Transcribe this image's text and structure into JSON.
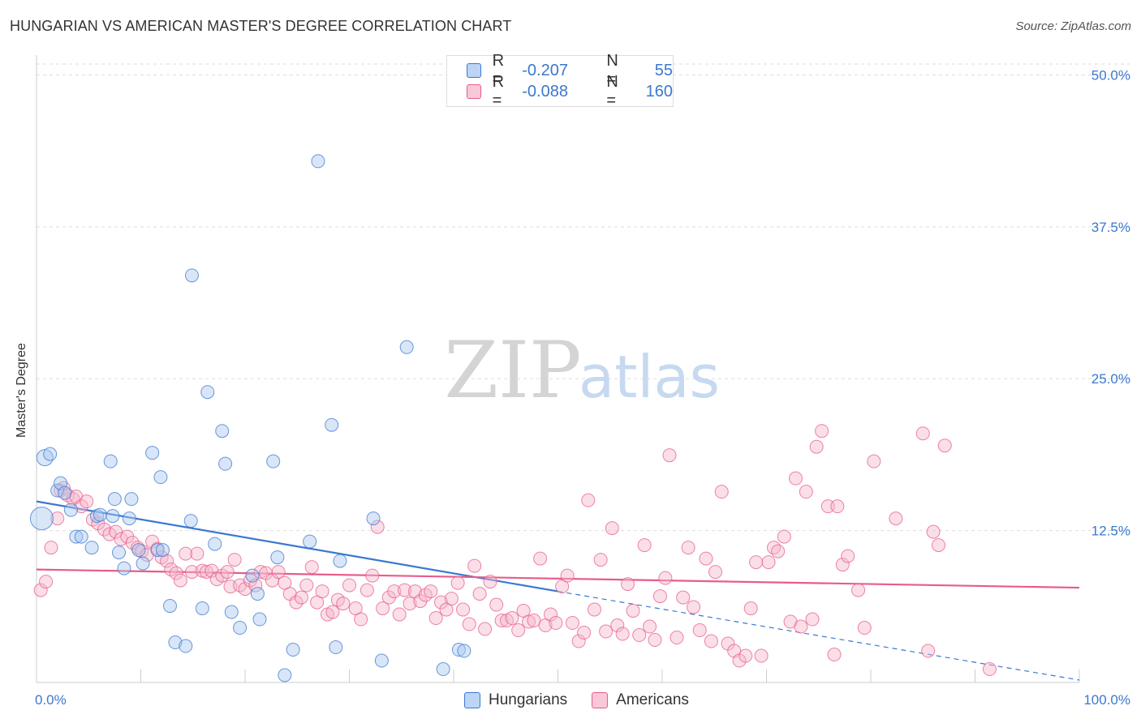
{
  "title": "HUNGARIAN VS AMERICAN MASTER'S DEGREE CORRELATION CHART",
  "source": "Source: ZipAtlas.com",
  "colors": {
    "blue": "#3b78d0",
    "blue_fill": "#a9c8f0",
    "pink": "#e85c8a",
    "pink_fill": "#f5b8cc",
    "axis_text": "#3b78d0",
    "grid": "#dddddd"
  },
  "legend": {
    "hungarians": {
      "r_label": "R =",
      "r_value": "-0.207",
      "n_label": "N =",
      "n_value": "55"
    },
    "americans": {
      "r_label": "R =",
      "r_value": "-0.088",
      "n_label": "N =",
      "n_value": "160"
    }
  },
  "watermark": {
    "zip": "ZIP",
    "atlas": "atlas"
  },
  "chart_data": {
    "type": "scatter",
    "title": "HUNGARIAN VS AMERICAN MASTER'S DEGREE CORRELATION CHART",
    "xlabel": "",
    "ylabel": "Master's Degree",
    "xlim": [
      0,
      100
    ],
    "ylim": [
      0,
      51.5
    ],
    "x_tick_labels": [
      "0.0%",
      "100.0%"
    ],
    "y_ticks": [
      12.5,
      25.0,
      37.5,
      50.0
    ],
    "y_tick_labels": [
      "12.5%",
      "25.0%",
      "37.5%",
      "50.0%"
    ],
    "grid": true,
    "legend_position": "bottom",
    "series": [
      {
        "name": "Hungarians",
        "color": "#3b78d0",
        "trend": {
          "x0": 0,
          "y0": 14.9,
          "x1": 50,
          "y1": 7.5,
          "extended_to_x": 100,
          "extended_y": 0.2
        },
        "points": [
          [
            0.5,
            13.5
          ],
          [
            0.8,
            18.5
          ],
          [
            1.3,
            18.8
          ],
          [
            2.0,
            15.8
          ],
          [
            2.3,
            16.4
          ],
          [
            2.7,
            15.6
          ],
          [
            3.3,
            14.2
          ],
          [
            3.8,
            12.0
          ],
          [
            4.3,
            12.0
          ],
          [
            5.3,
            11.1
          ],
          [
            5.8,
            13.7
          ],
          [
            6.1,
            13.8
          ],
          [
            7.1,
            18.2
          ],
          [
            7.3,
            13.7
          ],
          [
            7.5,
            15.1
          ],
          [
            7.9,
            10.7
          ],
          [
            8.4,
            9.4
          ],
          [
            8.9,
            13.5
          ],
          [
            9.1,
            15.1
          ],
          [
            9.8,
            10.9
          ],
          [
            10.2,
            9.8
          ],
          [
            11.1,
            18.9
          ],
          [
            11.6,
            10.9
          ],
          [
            11.9,
            16.9
          ],
          [
            12.1,
            10.9
          ],
          [
            12.8,
            6.3
          ],
          [
            13.3,
            3.3
          ],
          [
            14.3,
            3.0
          ],
          [
            14.8,
            13.3
          ],
          [
            14.9,
            33.5
          ],
          [
            15.9,
            6.1
          ],
          [
            16.4,
            23.9
          ],
          [
            17.1,
            11.4
          ],
          [
            17.8,
            20.7
          ],
          [
            18.1,
            18.0
          ],
          [
            18.7,
            5.8
          ],
          [
            19.5,
            4.5
          ],
          [
            20.7,
            8.8
          ],
          [
            21.2,
            7.3
          ],
          [
            21.4,
            5.2
          ],
          [
            22.7,
            18.2
          ],
          [
            23.1,
            10.3
          ],
          [
            23.8,
            0.6
          ],
          [
            24.6,
            2.7
          ],
          [
            26.2,
            11.6
          ],
          [
            27.0,
            42.9
          ],
          [
            28.3,
            21.2
          ],
          [
            28.7,
            2.9
          ],
          [
            29.1,
            10.0
          ],
          [
            32.3,
            13.5
          ],
          [
            33.1,
            1.8
          ],
          [
            35.5,
            27.6
          ],
          [
            39.0,
            1.1
          ],
          [
            40.5,
            2.7
          ],
          [
            41.0,
            2.6
          ]
        ]
      },
      {
        "name": "Americans",
        "color": "#e85c8a",
        "trend": {
          "x0": 0,
          "y0": 9.3,
          "x1": 100,
          "y1": 7.8
        },
        "points": [
          [
            0.4,
            7.6
          ],
          [
            0.9,
            8.3
          ],
          [
            1.4,
            11.1
          ],
          [
            2.0,
            13.5
          ],
          [
            2.3,
            15.8
          ],
          [
            2.6,
            16.0
          ],
          [
            3.0,
            15.4
          ],
          [
            3.5,
            15.1
          ],
          [
            3.8,
            15.3
          ],
          [
            4.3,
            14.5
          ],
          [
            4.8,
            14.9
          ],
          [
            5.4,
            13.4
          ],
          [
            5.9,
            13.1
          ],
          [
            6.5,
            12.6
          ],
          [
            7.0,
            12.2
          ],
          [
            7.6,
            12.4
          ],
          [
            8.1,
            11.8
          ],
          [
            8.7,
            12.0
          ],
          [
            9.2,
            11.5
          ],
          [
            9.7,
            11.1
          ],
          [
            10.1,
            10.8
          ],
          [
            10.6,
            10.5
          ],
          [
            11.1,
            11.6
          ],
          [
            11.6,
            11.0
          ],
          [
            12.0,
            10.3
          ],
          [
            12.5,
            10.0
          ],
          [
            12.9,
            9.3
          ],
          [
            13.4,
            9.0
          ],
          [
            13.8,
            8.4
          ],
          [
            14.3,
            10.6
          ],
          [
            14.9,
            9.1
          ],
          [
            15.4,
            10.6
          ],
          [
            15.9,
            9.2
          ],
          [
            16.3,
            9.1
          ],
          [
            16.8,
            9.2
          ],
          [
            17.3,
            8.5
          ],
          [
            17.8,
            8.8
          ],
          [
            18.3,
            9.1
          ],
          [
            18.6,
            7.9
          ],
          [
            19.0,
            10.1
          ],
          [
            19.5,
            8.0
          ],
          [
            20.0,
            7.7
          ],
          [
            20.5,
            8.4
          ],
          [
            21.0,
            8.0
          ],
          [
            21.5,
            9.1
          ],
          [
            22.0,
            9.0
          ],
          [
            22.6,
            8.4
          ],
          [
            23.2,
            9.1
          ],
          [
            23.8,
            8.2
          ],
          [
            24.3,
            7.3
          ],
          [
            24.9,
            6.6
          ],
          [
            25.4,
            7.0
          ],
          [
            25.9,
            8.0
          ],
          [
            26.4,
            9.5
          ],
          [
            26.9,
            6.6
          ],
          [
            27.4,
            7.5
          ],
          [
            27.9,
            5.6
          ],
          [
            28.4,
            5.8
          ],
          [
            28.9,
            6.8
          ],
          [
            29.4,
            6.5
          ],
          [
            30.0,
            8.0
          ],
          [
            30.6,
            6.1
          ],
          [
            31.1,
            5.2
          ],
          [
            31.7,
            7.6
          ],
          [
            32.2,
            8.8
          ],
          [
            32.7,
            12.8
          ],
          [
            33.2,
            6.1
          ],
          [
            33.8,
            7.0
          ],
          [
            34.3,
            7.5
          ],
          [
            34.8,
            5.6
          ],
          [
            35.3,
            7.6
          ],
          [
            35.8,
            6.5
          ],
          [
            36.3,
            7.5
          ],
          [
            36.8,
            6.7
          ],
          [
            37.3,
            7.2
          ],
          [
            37.8,
            7.5
          ],
          [
            38.3,
            5.3
          ],
          [
            38.8,
            6.6
          ],
          [
            39.3,
            6.0
          ],
          [
            39.8,
            6.9
          ],
          [
            40.4,
            8.2
          ],
          [
            40.9,
            6.0
          ],
          [
            41.5,
            4.8
          ],
          [
            42.0,
            9.6
          ],
          [
            42.5,
            7.3
          ],
          [
            43.0,
            4.4
          ],
          [
            43.5,
            8.3
          ],
          [
            44.1,
            6.4
          ],
          [
            44.6,
            5.1
          ],
          [
            45.1,
            5.1
          ],
          [
            45.6,
            5.3
          ],
          [
            46.2,
            4.3
          ],
          [
            46.7,
            5.9
          ],
          [
            47.2,
            5.0
          ],
          [
            47.7,
            5.1
          ],
          [
            48.3,
            10.2
          ],
          [
            48.8,
            4.7
          ],
          [
            49.3,
            5.6
          ],
          [
            49.8,
            4.9
          ],
          [
            50.4,
            7.9
          ],
          [
            50.9,
            8.8
          ],
          [
            51.4,
            4.9
          ],
          [
            52.0,
            3.4
          ],
          [
            52.5,
            4.1
          ],
          [
            52.9,
            15.0
          ],
          [
            53.5,
            6.0
          ],
          [
            54.1,
            10.1
          ],
          [
            54.6,
            4.2
          ],
          [
            55.2,
            12.7
          ],
          [
            55.7,
            4.7
          ],
          [
            56.2,
            4.0
          ],
          [
            56.7,
            8.1
          ],
          [
            57.2,
            5.9
          ],
          [
            57.8,
            3.9
          ],
          [
            58.3,
            11.3
          ],
          [
            58.8,
            4.6
          ],
          [
            59.3,
            3.5
          ],
          [
            59.8,
            7.1
          ],
          [
            60.3,
            8.6
          ],
          [
            60.7,
            18.7
          ],
          [
            61.4,
            3.7
          ],
          [
            62.0,
            7.0
          ],
          [
            62.5,
            11.1
          ],
          [
            63.0,
            6.2
          ],
          [
            63.6,
            4.3
          ],
          [
            64.2,
            10.2
          ],
          [
            64.7,
            3.4
          ],
          [
            65.1,
            9.1
          ],
          [
            65.7,
            15.7
          ],
          [
            66.3,
            3.2
          ],
          [
            66.9,
            2.6
          ],
          [
            67.4,
            1.8
          ],
          [
            68.0,
            2.2
          ],
          [
            68.5,
            6.1
          ],
          [
            69.0,
            9.9
          ],
          [
            69.5,
            2.2
          ],
          [
            70.2,
            9.9
          ],
          [
            70.7,
            11.1
          ],
          [
            71.1,
            10.8
          ],
          [
            71.7,
            12.0
          ],
          [
            72.3,
            5.0
          ],
          [
            72.8,
            16.8
          ],
          [
            73.3,
            4.6
          ],
          [
            73.8,
            15.7
          ],
          [
            74.4,
            5.2
          ],
          [
            74.8,
            19.4
          ],
          [
            75.3,
            20.7
          ],
          [
            75.9,
            14.5
          ],
          [
            76.5,
            2.3
          ],
          [
            76.8,
            14.5
          ],
          [
            77.3,
            9.7
          ],
          [
            77.8,
            10.4
          ],
          [
            78.8,
            7.6
          ],
          [
            79.4,
            4.5
          ],
          [
            80.3,
            18.2
          ],
          [
            82.4,
            13.5
          ],
          [
            85.0,
            20.5
          ],
          [
            85.5,
            2.6
          ],
          [
            86.0,
            12.4
          ],
          [
            86.5,
            11.3
          ],
          [
            87.1,
            19.5
          ],
          [
            91.4,
            1.1
          ]
        ]
      }
    ]
  }
}
